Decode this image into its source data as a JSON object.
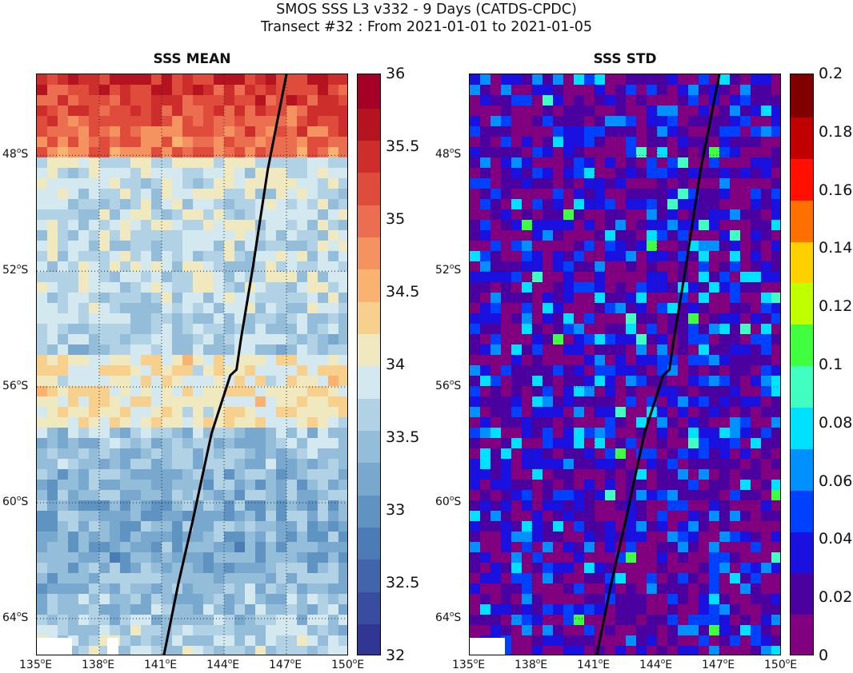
{
  "header": {
    "line1": "SMOS SSS L3 v332 - 9 Days (CATDS-CPDC)",
    "line2": "Transect #32 : From 2021-01-01 to 2021-01-05"
  },
  "panels": [
    {
      "id": "mean",
      "title": "SSS MEAN",
      "colorbar": {
        "min": 32,
        "max": 36,
        "ticks": [
          "36",
          "35.5",
          "35",
          "34.5",
          "34",
          "33.5",
          "33",
          "32.5",
          "32"
        ],
        "colors": [
          "#313695",
          "#384da0",
          "#4264ab",
          "#4c7cb6",
          "#5e93c2",
          "#79a8ce",
          "#93bdd9",
          "#b0d2e4",
          "#d3e8ef",
          "#f0e9bf",
          "#f8d08d",
          "#f9b26f",
          "#f49260",
          "#ea6e4f",
          "#df4c3c",
          "#cd2e2b",
          "#b5131f",
          "#a50026"
        ]
      },
      "x_labels": [
        "135",
        "138",
        "141",
        "144",
        "147",
        "150"
      ],
      "y_labels": [
        "48",
        "52",
        "56",
        "60",
        "64"
      ]
    },
    {
      "id": "std",
      "title": "SSS STD",
      "colorbar": {
        "min": 0,
        "max": 0.2,
        "ticks": [
          "0.2",
          "0.18",
          "0.16",
          "0.14",
          "0.12",
          "0.1",
          "0.08",
          "0.06",
          "0.04",
          "0.02",
          "0"
        ],
        "colors": [
          "#800080",
          "#4b00a0",
          "#1a10e0",
          "#0040ff",
          "#0090ff",
          "#00e0ff",
          "#40ffc0",
          "#40ff40",
          "#c0ff00",
          "#ffd000",
          "#ff7000",
          "#ff1000",
          "#c00000",
          "#800000"
        ]
      },
      "x_labels": [
        "135",
        "138",
        "141",
        "144",
        "147",
        "150"
      ],
      "y_labels": [
        "48",
        "52",
        "56",
        "60",
        "64"
      ]
    }
  ],
  "axes": {
    "lon_range": [
      135,
      150
    ],
    "lat_range": [
      -65.3,
      -45.2
    ],
    "lon_unit": "°E",
    "lat_unit": "°S",
    "grid": "dotted"
  },
  "track": {
    "color": "#000000",
    "points": [
      [
        147.0,
        -45.2
      ],
      [
        146.1,
        -48.5
      ],
      [
        145.4,
        -51.8
      ],
      [
        144.8,
        -54.4
      ],
      [
        144.6,
        -55.4
      ],
      [
        144.3,
        -55.6
      ],
      [
        143.4,
        -57.6
      ],
      [
        142.5,
        -60.6
      ],
      [
        141.8,
        -62.8
      ],
      [
        141.1,
        -65.3
      ]
    ]
  }
}
